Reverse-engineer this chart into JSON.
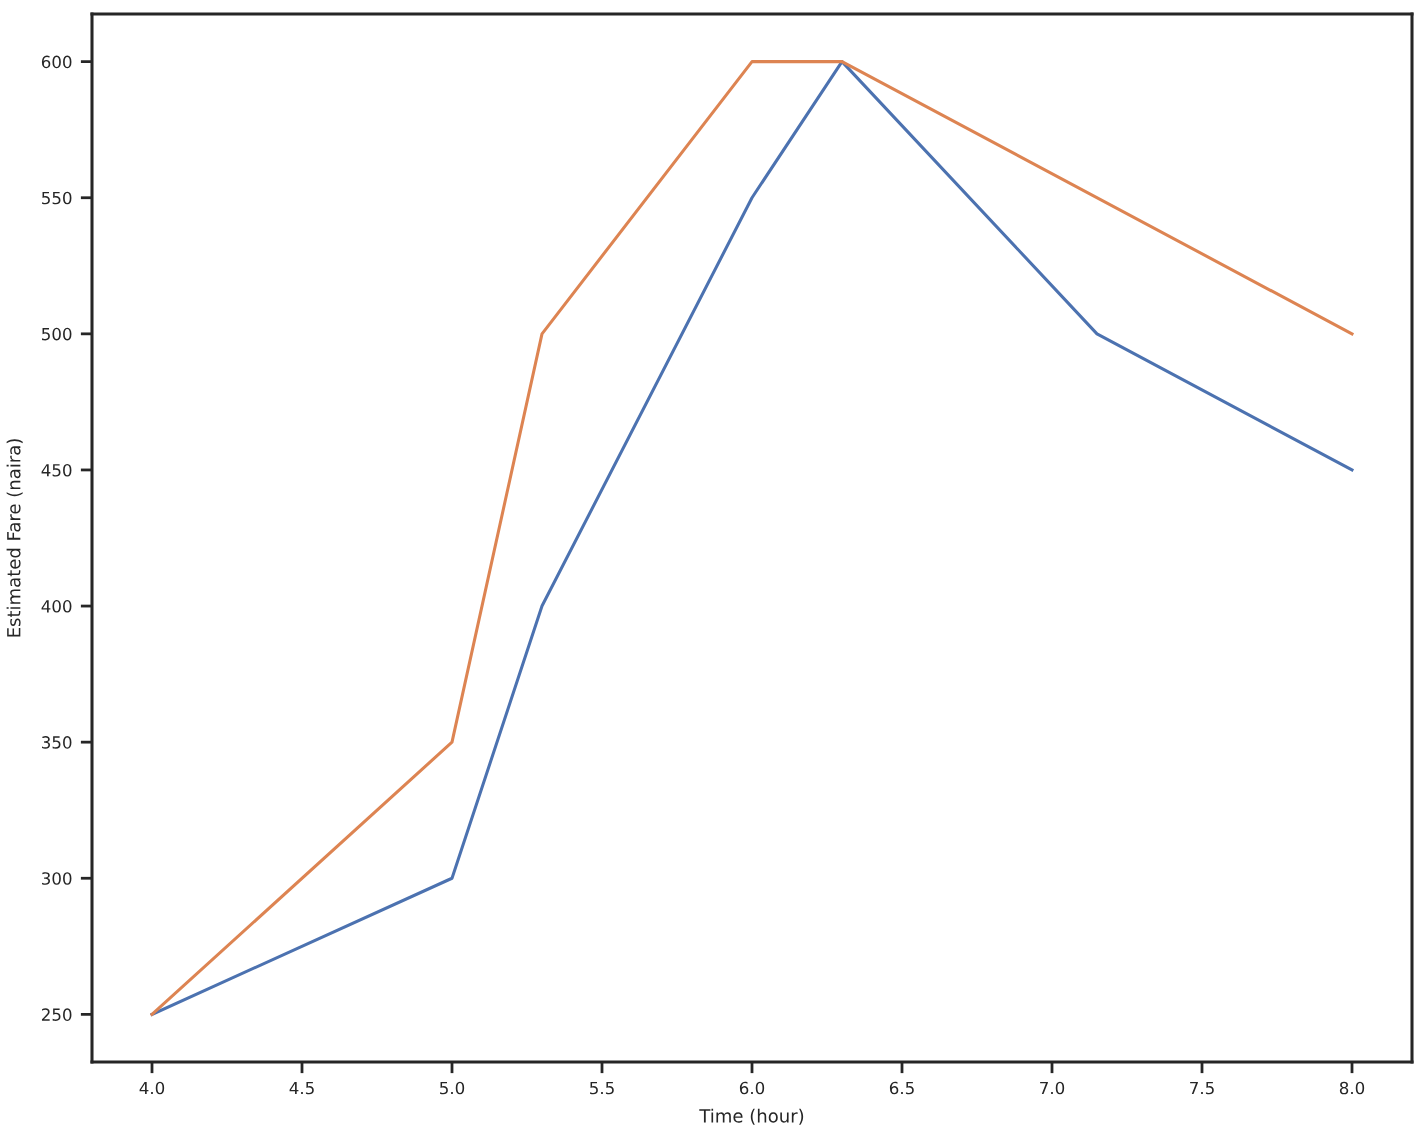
{
  "chart_data": {
    "type": "line",
    "xlabel": "Time (hour)",
    "ylabel": "Estimated Fare (naira)",
    "series": [
      {
        "color": "#4c72b0",
        "x": [
          4,
          5,
          5.3,
          6,
          6.3,
          7.15,
          8
        ],
        "values": [
          250,
          300,
          400,
          550,
          600,
          500,
          450
        ]
      },
      {
        "color": "#dd8452",
        "x": [
          4,
          5,
          5.3,
          6,
          6.3,
          8
        ],
        "values": [
          250,
          350,
          500,
          600,
          600,
          500
        ]
      }
    ],
    "xlim": [
      3.8,
      8.2
    ],
    "xticks": [
      {
        "value": 4,
        "label": "4.0"
      },
      {
        "value": 4.5,
        "label": "4.5"
      },
      {
        "value": 5,
        "label": "5.0"
      },
      {
        "value": 5.5,
        "label": "5.5"
      },
      {
        "value": 6,
        "label": "6.0"
      },
      {
        "value": 6.5,
        "label": "6.5"
      },
      {
        "value": 7,
        "label": "7.0"
      },
      {
        "value": 7.5,
        "label": "7.5"
      },
      {
        "value": 8,
        "label": "8.0"
      }
    ],
    "ylim": [
      232.5,
      617.5
    ],
    "yticks": [
      250,
      300,
      350,
      400,
      450,
      500,
      550,
      600
    ],
    "grid": false,
    "marker": "none",
    "line_style": "solid"
  }
}
